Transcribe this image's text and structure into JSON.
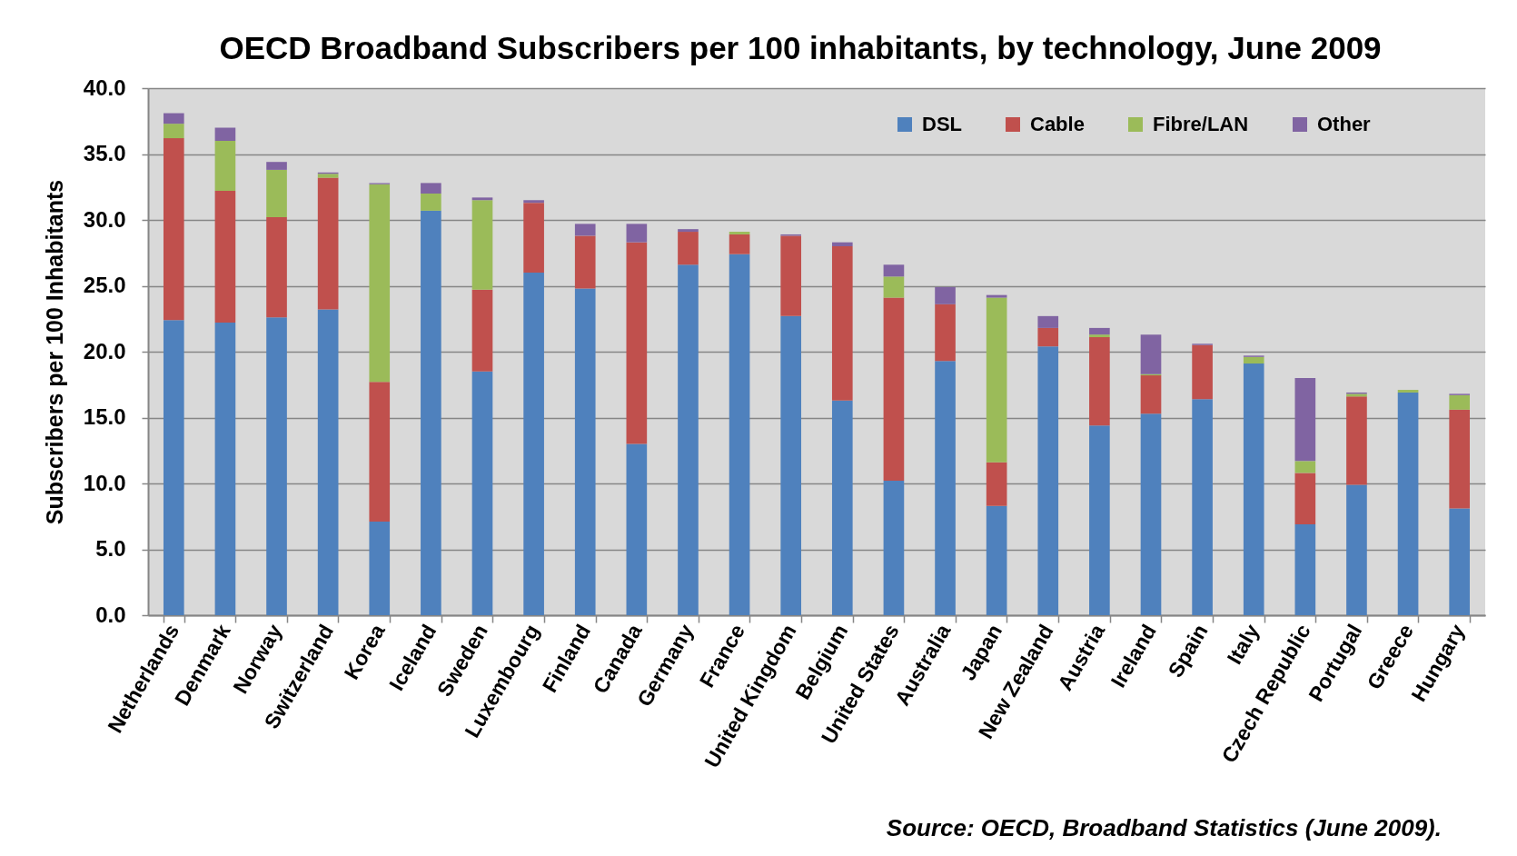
{
  "chart_data": {
    "type": "bar",
    "title": "OECD Broadband Subscribers per 100 inhabitants, by technology, June 2009",
    "ylabel": "Subscribers per 100 Inhabitants",
    "categories": [
      "Netherlands",
      "Denmark",
      "Norway",
      "Switzerland",
      "Korea",
      "Iceland",
      "Sweden",
      "Luxembourg",
      "Finland",
      "Canada",
      "Germany",
      "France",
      "United Kingdom",
      "Belgium",
      "United States",
      "Australia",
      "Japan",
      "New Zealand",
      "Austria",
      "Ireland",
      "Spain",
      "Italy",
      "Czech Republic",
      "Portugal",
      "Greece",
      "Hungary"
    ],
    "series": [
      {
        "name": "DSL",
        "color": "#4f81bd",
        "values": [
          22.4,
          22.2,
          22.6,
          23.2,
          7.1,
          30.7,
          18.5,
          26.0,
          24.8,
          13.0,
          26.6,
          27.4,
          22.7,
          16.3,
          10.2,
          19.3,
          8.3,
          20.4,
          14.4,
          15.3,
          16.4,
          19.1,
          6.9,
          9.9,
          16.9,
          8.1
        ]
      },
      {
        "name": "Cable",
        "color": "#c0504d",
        "values": [
          13.8,
          10.0,
          7.6,
          10.0,
          10.6,
          null,
          6.2,
          5.3,
          4.0,
          15.3,
          2.5,
          1.5,
          6.1,
          11.7,
          13.9,
          4.3,
          3.3,
          1.4,
          6.7,
          2.9,
          4.1,
          null,
          3.9,
          6.7,
          null,
          7.5
        ]
      },
      {
        "name": "Fibre/LAN",
        "color": "#9bbb59",
        "values": [
          1.1,
          3.8,
          3.6,
          0.3,
          15.0,
          1.3,
          6.8,
          null,
          null,
          null,
          null,
          0.2,
          null,
          null,
          1.6,
          null,
          12.5,
          null,
          0.2,
          0.1,
          null,
          0.5,
          0.9,
          0.2,
          0.2,
          1.1
        ]
      },
      {
        "name": "Other",
        "color": "#8064a2",
        "values": [
          0.8,
          1.0,
          0.6,
          0.1,
          0.1,
          0.8,
          0.2,
          0.2,
          0.9,
          1.4,
          0.2,
          null,
          0.1,
          0.3,
          0.9,
          1.3,
          0.2,
          0.9,
          0.5,
          3.0,
          0.1,
          0.1,
          6.3,
          0.1,
          null,
          0.1
        ]
      }
    ],
    "stacked": true,
    "ylim": [
      0,
      40
    ],
    "yticks": [
      {
        "value": 0,
        "label": "0.0"
      },
      {
        "value": 5,
        "label": "5.0"
      },
      {
        "value": 10,
        "label": "10.0"
      },
      {
        "value": 15,
        "label": "15.0"
      },
      {
        "value": 20,
        "label": "20.0"
      },
      {
        "value": 25,
        "label": "25.0"
      },
      {
        "value": 30,
        "label": "30.0"
      },
      {
        "value": 35,
        "label": "35.0"
      },
      {
        "value": 40,
        "label": "40.0"
      }
    ],
    "grid": "y",
    "legend": "top right",
    "annotations": [
      "Source: OECD, Broadband Statistics (June 2009)."
    ]
  }
}
